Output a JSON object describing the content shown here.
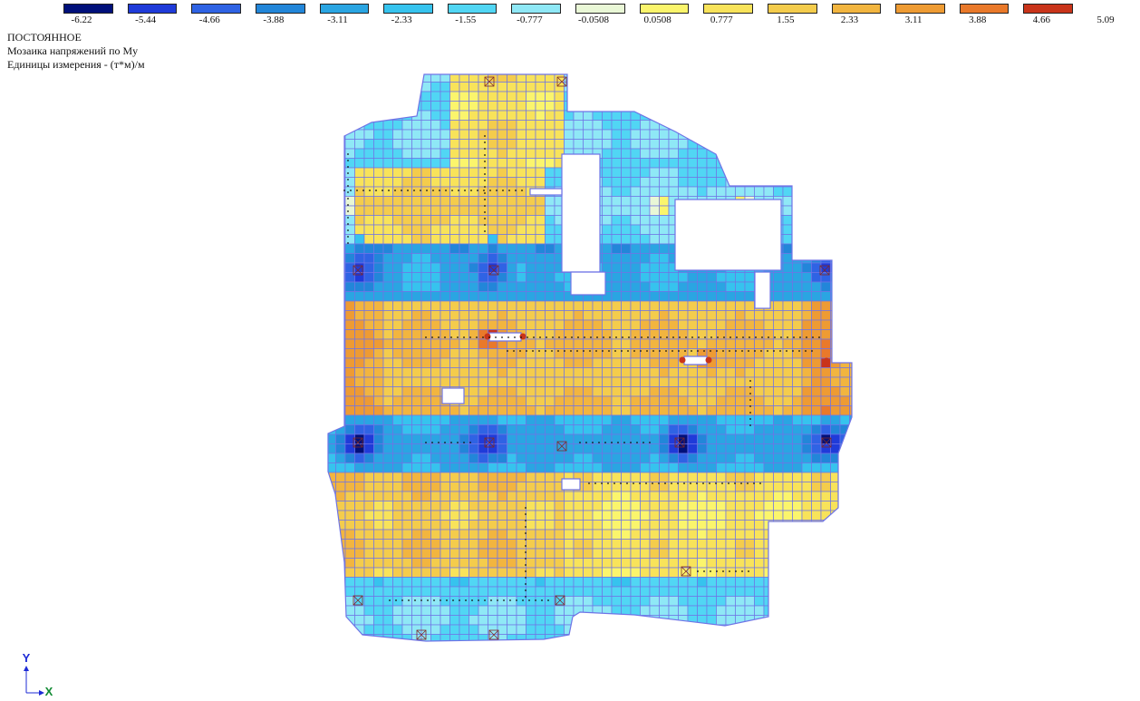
{
  "legend": {
    "ticks": [
      "-6.22",
      "-5.44",
      "-4.66",
      "-3.88",
      "-3.11",
      "-2.33",
      "-1.55",
      "-0.777",
      "-0.0508",
      "0.0508",
      "0.777",
      "1.55",
      "2.33",
      "3.11",
      "3.88",
      "4.66",
      "5.09"
    ],
    "colors": [
      "#00107a",
      "#1f3bd9",
      "#2f63e4",
      "#2286d9",
      "#2aa5e2",
      "#36c3ee",
      "#51d6f4",
      "#8fe8f6",
      "#e9f7d6",
      "#fbf56c",
      "#f8e35a",
      "#f4cc4c",
      "#f2b53f",
      "#ee9b33",
      "#e9792a",
      "#c9341a"
    ]
  },
  "info": {
    "case": "ПОСТОЯННОЕ",
    "description": "Мозаика напряжений по My",
    "units": "Единицы измерения - (т*м)/м"
  },
  "axes": {
    "y": "Y",
    "x": "X"
  },
  "plot_colors": {
    "mesh": "#6f74e6",
    "hole": "#ffffff",
    "support_node": "#7e2a2a"
  }
}
